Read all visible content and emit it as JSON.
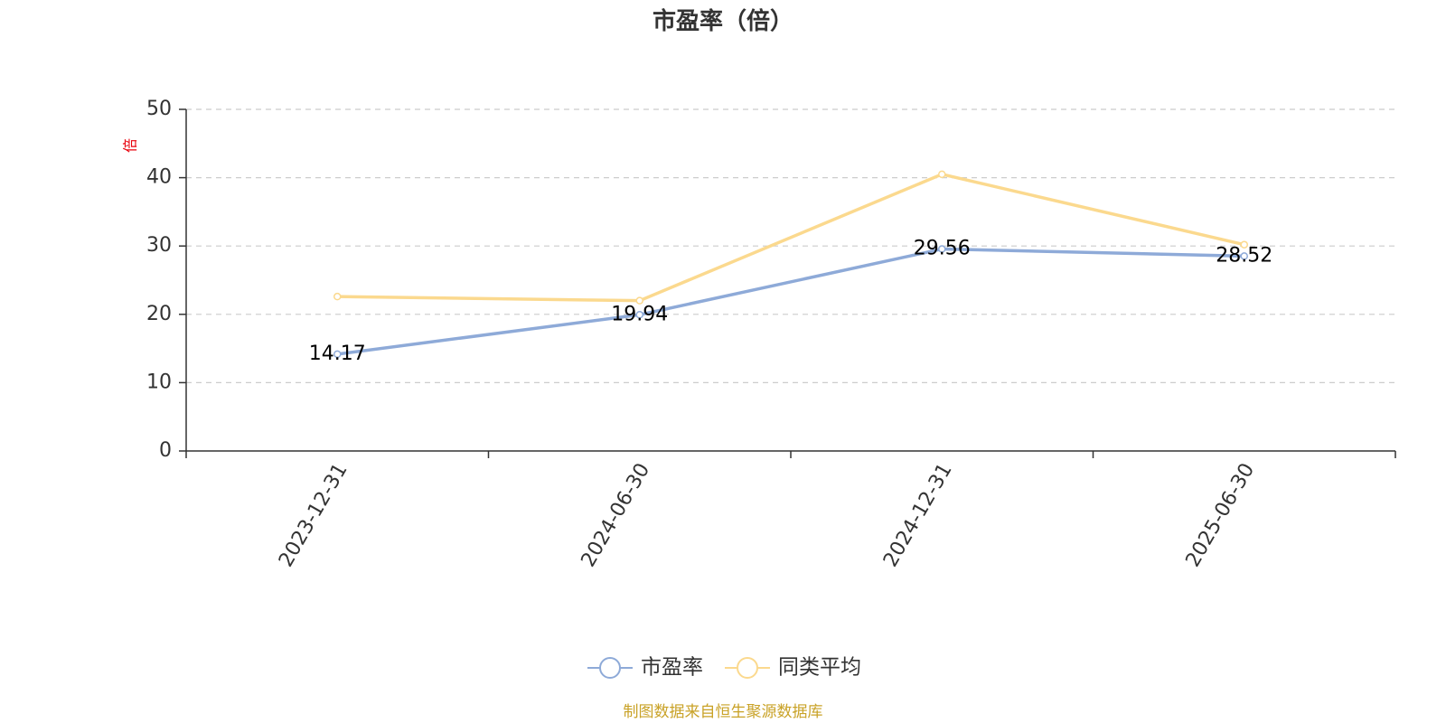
{
  "chart_data": {
    "type": "line",
    "title": "市盈率（倍）",
    "ylabel": "倍",
    "categories": [
      "2023-12-31",
      "2024-06-30",
      "2024-12-31",
      "2025-06-30"
    ],
    "ylim": [
      0,
      50
    ],
    "yticks": [
      0,
      10,
      20,
      30,
      40,
      50
    ],
    "grid": true,
    "legend_position": "bottom",
    "series": [
      {
        "name": "市盈率",
        "values": [
          14.17,
          19.94,
          29.56,
          28.52
        ],
        "color": "#8eaad8",
        "labels": [
          "14.17",
          "19.94",
          "29.56",
          "28.52"
        ]
      },
      {
        "name": "同类平均",
        "values": [
          22.6,
          22.0,
          40.5,
          30.2
        ],
        "color": "#fbd98e"
      }
    ],
    "source": "制图数据来自恒生聚源数据库"
  }
}
